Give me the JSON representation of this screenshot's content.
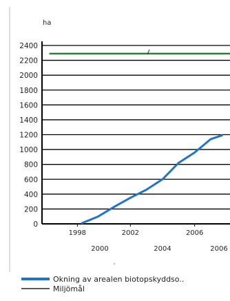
{
  "chart_data": {
    "type": "line",
    "ylabel": "ha",
    "y_ticks": [
      "2400",
      "2200",
      "2000",
      "1800",
      "1600",
      "1400",
      "1200",
      "1000",
      "800",
      "600",
      "400",
      "200",
      "0"
    ],
    "ylim": [
      0,
      2400
    ],
    "x_ticks_upper": [
      "1998",
      "2002",
      "2006"
    ],
    "x_ticks_lower": [
      "2000",
      "2004",
      "2006"
    ],
    "grid": true,
    "legend_position": "bottom",
    "series": [
      {
        "name": "Okning av arealen biotopskyddso..",
        "color": "#1f74c8",
        "x": [
          1999,
          2000,
          2001,
          2002,
          2003,
          2004,
          2005,
          2006,
          2007,
          2007.7
        ],
        "y": [
          10,
          100,
          230,
          350,
          460,
          600,
          820,
          960,
          1140,
          1190
        ]
      },
      {
        "name": "Miljömål",
        "color": "#2e7d32",
        "x": [
          1997,
          2008.5
        ],
        "y": [
          2290,
          2290
        ]
      }
    ]
  }
}
